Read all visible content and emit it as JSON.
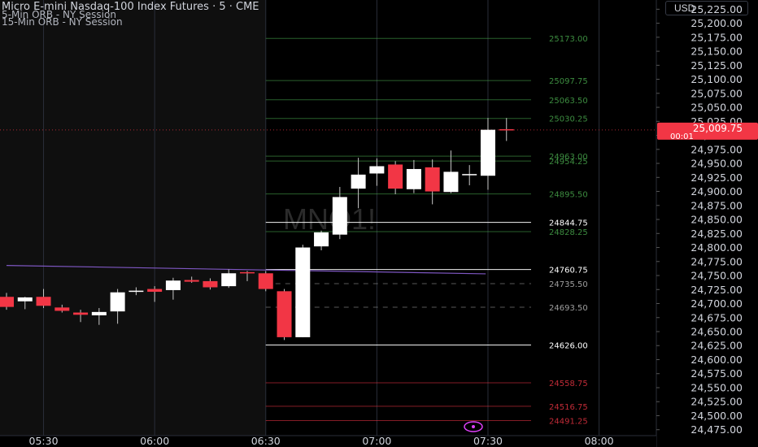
{
  "header": {
    "title": "Micro E-mini Nasdaq-100 Index Futures · 5 · CME",
    "indicators": [
      "5-Min ORB - NY Session",
      "15-Min ORB - NY Session"
    ],
    "currency": "USD"
  },
  "watermark": "MNQ1!",
  "colors": {
    "background": "#000000",
    "up": "#ffffff",
    "down": "#f23645",
    "orb_green": "#4caf50",
    "orb_red": "#f23645",
    "line_white": "#ffffff",
    "avg_line": "#7e57c2",
    "grid": "#2a2e39",
    "axis_text": "#d1d4dc"
  },
  "last_price": {
    "value": "25,009.75",
    "countdown": "00:01"
  },
  "price_axis_ticks": [
    "25,225.00",
    "25,200.00",
    "25,175.00",
    "25,150.00",
    "25,125.00",
    "25,100.00",
    "25,075.00",
    "25,050.00",
    "25,025.00",
    "25,000.00",
    "24,975.00",
    "24,950.00",
    "24,925.00",
    "24,900.00",
    "24,875.00",
    "24,850.00",
    "24,825.00",
    "24,800.00",
    "24,775.00",
    "24,750.00",
    "24,725.00",
    "24,700.00",
    "24,675.00",
    "24,650.00",
    "24,625.00",
    "24,600.00",
    "24,575.00",
    "24,550.00",
    "24,525.00",
    "24,500.00",
    "24,475.00"
  ],
  "time_axis_ticks": [
    "05:30",
    "06:00",
    "06:30",
    "07:00",
    "07:30",
    "08:00"
  ],
  "chart_data": {
    "type": "candlestick",
    "title": "Micro E-mini Nasdaq-100 Index Futures · 5 · CME",
    "interval_minutes": 5,
    "ylim": [
      24463,
      25240
    ],
    "xlim": [
      "05:20",
      "08:17"
    ],
    "candles": [
      {
        "t": "05:20",
        "o": 24712,
        "h": 24719,
        "l": 24689,
        "c": 24694
      },
      {
        "t": "05:25",
        "o": 24704,
        "h": 24712,
        "l": 24690,
        "c": 24711
      },
      {
        "t": "05:30",
        "o": 24712,
        "h": 24726,
        "l": 24692,
        "c": 24696
      },
      {
        "t": "05:35",
        "o": 24693,
        "h": 24698,
        "l": 24684,
        "c": 24687
      },
      {
        "t": "05:40",
        "o": 24684,
        "h": 24689,
        "l": 24667,
        "c": 24680
      },
      {
        "t": "05:45",
        "o": 24679,
        "h": 24692,
        "l": 24662,
        "c": 24685
      },
      {
        "t": "05:50",
        "o": 24686,
        "h": 24726,
        "l": 24664,
        "c": 24720
      },
      {
        "t": "05:55",
        "o": 24722,
        "h": 24729,
        "l": 24715,
        "c": 24723
      },
      {
        "t": "06:00",
        "o": 24726,
        "h": 24731,
        "l": 24703,
        "c": 24721
      },
      {
        "t": "06:05",
        "o": 24724,
        "h": 24746,
        "l": 24707,
        "c": 24741
      },
      {
        "t": "06:10",
        "o": 24742,
        "h": 24748,
        "l": 24737,
        "c": 24739
      },
      {
        "t": "06:15",
        "o": 24740,
        "h": 24745,
        "l": 24725,
        "c": 24729
      },
      {
        "t": "06:20",
        "o": 24731,
        "h": 24761,
        "l": 24728,
        "c": 24754
      },
      {
        "t": "06:25",
        "o": 24756,
        "h": 24758,
        "l": 24740,
        "c": 24754
      },
      {
        "t": "06:30",
        "o": 24754,
        "h": 24758,
        "l": 24722,
        "c": 24726
      },
      {
        "t": "06:35",
        "o": 24722,
        "h": 24726,
        "l": 24635,
        "c": 24640
      },
      {
        "t": "06:40",
        "o": 24640,
        "h": 24805,
        "l": 24640,
        "c": 24800
      },
      {
        "t": "06:45",
        "o": 24802,
        "h": 24830,
        "l": 24795,
        "c": 24827
      },
      {
        "t": "06:50",
        "o": 24823,
        "h": 24908,
        "l": 24815,
        "c": 24890
      },
      {
        "t": "06:55",
        "o": 24905,
        "h": 24960,
        "l": 24870,
        "c": 24930
      },
      {
        "t": "07:00",
        "o": 24932,
        "h": 24959,
        "l": 24910,
        "c": 24945
      },
      {
        "t": "07:05",
        "o": 24948,
        "h": 24954,
        "l": 24895,
        "c": 24905
      },
      {
        "t": "07:10",
        "o": 24904,
        "h": 24956,
        "l": 24897,
        "c": 24940
      },
      {
        "t": "07:15",
        "o": 24943,
        "h": 24957,
        "l": 24877,
        "c": 24900
      },
      {
        "t": "07:20",
        "o": 24899,
        "h": 24973,
        "l": 24897,
        "c": 24935
      },
      {
        "t": "07:25",
        "o": 24930,
        "h": 24947,
        "l": 24911,
        "c": 24931
      },
      {
        "t": "07:30",
        "o": 24928,
        "h": 25031,
        "l": 24903,
        "c": 25010
      },
      {
        "t": "07:35",
        "o": 25011,
        "h": 25031,
        "l": 24990,
        "c": 25010
      }
    ],
    "levels": [
      {
        "label": "25173.00",
        "value": 25173.0,
        "color": "green"
      },
      {
        "label": "25097.75",
        "value": 25097.75,
        "color": "green"
      },
      {
        "label": "25063.50",
        "value": 25063.5,
        "color": "green"
      },
      {
        "label": "25030.25",
        "value": 25030.25,
        "color": "green"
      },
      {
        "label": "24963.00",
        "value": 24963.0,
        "color": "green"
      },
      {
        "label": "24954.25",
        "value": 24954.25,
        "color": "green"
      },
      {
        "label": "24895.50",
        "value": 24895.5,
        "color": "green"
      },
      {
        "label": "24844.75",
        "value": 24844.75,
        "color": "white"
      },
      {
        "label": "24828.25",
        "value": 24828.25,
        "color": "green"
      },
      {
        "label": "24760.75",
        "value": 24760.75,
        "color": "white"
      },
      {
        "label": "24735.50",
        "value": 24735.5,
        "color": "white-dashed"
      },
      {
        "label": "24693.50",
        "value": 24693.5,
        "color": "white-dashed"
      },
      {
        "label": "24626.00",
        "value": 24626.0,
        "color": "white"
      },
      {
        "label": "24558.75",
        "value": 24558.75,
        "color": "red"
      },
      {
        "label": "24516.75",
        "value": 24516.75,
        "color": "red"
      },
      {
        "label": "24491.25",
        "value": 24491.25,
        "color": "red"
      }
    ],
    "avg_line": [
      {
        "t": "05:20",
        "v": 24768
      },
      {
        "t": "07:25",
        "v": 24753
      }
    ]
  }
}
